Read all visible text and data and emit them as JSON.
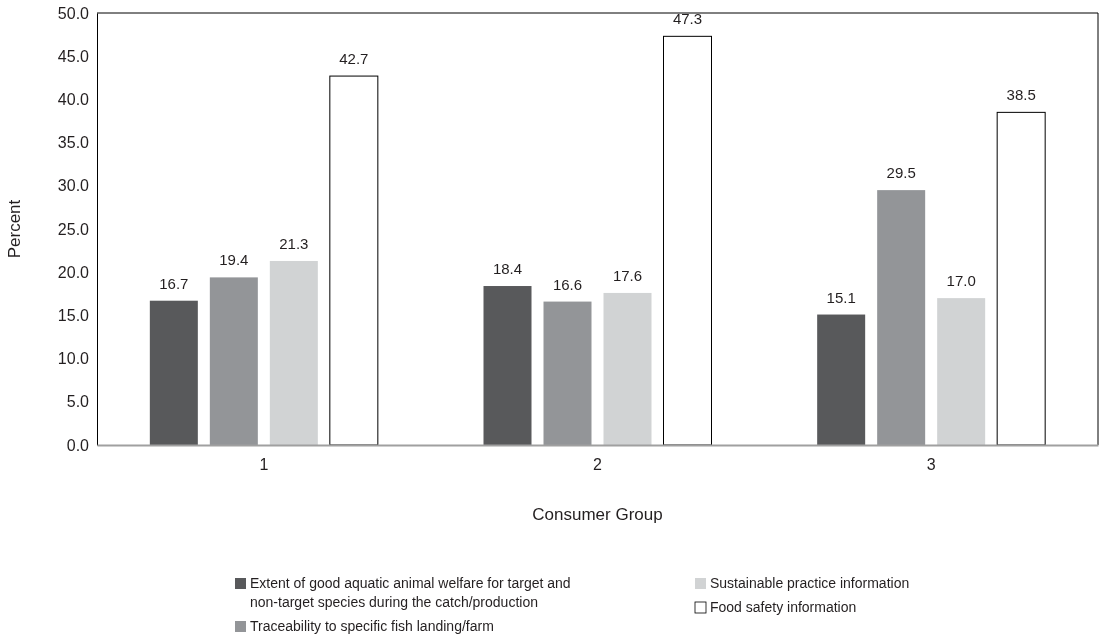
{
  "chart_data": {
    "type": "bar",
    "xlabel": "Consumer Group",
    "ylabel": "Percent",
    "categories": [
      "1",
      "2",
      "3"
    ],
    "series": [
      {
        "name": "Extent of good aquatic animal welfare for target and non-target species during the catch/production",
        "color": "#58595b",
        "values": [
          16.7,
          18.4,
          15.1
        ],
        "value_labels": [
          "16.7",
          "18.4",
          "15.1"
        ]
      },
      {
        "name": "Traceability to specific fish landing/farm",
        "color": "#939598",
        "values": [
          19.4,
          16.6,
          29.5
        ],
        "value_labels": [
          "19.4",
          "16.6",
          "29.5"
        ]
      },
      {
        "name": "Sustainable practice information",
        "color": "#d1d3d4",
        "values": [
          21.3,
          17.6,
          17.0
        ],
        "value_labels": [
          "21.3",
          "17.6",
          "17.0"
        ]
      },
      {
        "name": "Food safety information",
        "color": "#ffffff",
        "values": [
          42.7,
          47.3,
          38.5
        ],
        "value_labels": [
          "42.7",
          "47.3",
          "38.5"
        ]
      }
    ],
    "ylim": [
      0,
      50
    ],
    "yticks": [
      {
        "value": 0,
        "label": "0.0"
      },
      {
        "value": 5,
        "label": "5.0"
      },
      {
        "value": 10,
        "label": "10.0"
      },
      {
        "value": 15,
        "label": "15.0"
      },
      {
        "value": 20,
        "label": "20.0"
      },
      {
        "value": 25,
        "label": "25.0"
      },
      {
        "value": 30,
        "label": "30.0"
      },
      {
        "value": 35,
        "label": "35.0"
      },
      {
        "value": 40,
        "label": "40.0"
      },
      {
        "value": 45,
        "label": "45.0"
      },
      {
        "value": 50,
        "label": "50.0"
      }
    ],
    "grid": false,
    "legend": "bottom"
  }
}
